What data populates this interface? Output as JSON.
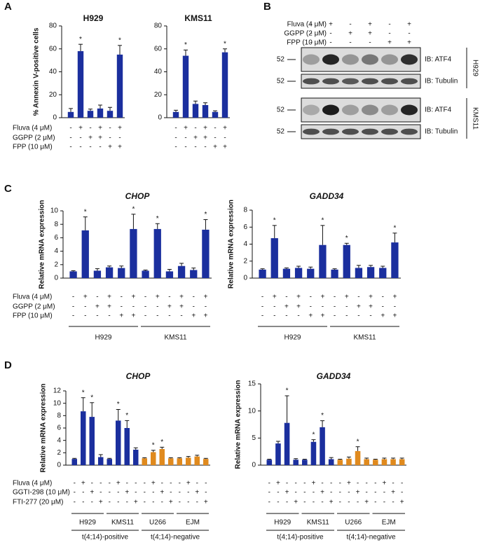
{
  "panel_labels": [
    "A",
    "B",
    "C",
    "D"
  ],
  "blot": {
    "header_rows": [
      {
        "name": "Fluva (4 μM)",
        "signs": [
          "-",
          "+",
          "-",
          "+",
          "-",
          "+"
        ]
      },
      {
        "name": "GGPP (2 μM)",
        "signs": [
          "-",
          "-",
          "+",
          "+",
          "-",
          "-"
        ]
      },
      {
        "name": "FPP (10 μM)",
        "signs": [
          "-",
          "-",
          "-",
          "-",
          "+",
          "+"
        ]
      }
    ],
    "blocks": [
      {
        "cell": "H929",
        "rows": [
          {
            "marker": "52",
            "label": "IB: ATF4"
          },
          {
            "marker": "52",
            "label": "IB: Tubulin"
          }
        ]
      },
      {
        "cell": "KMS11",
        "rows": [
          {
            "marker": "52",
            "label": "IB: ATF4"
          },
          {
            "marker": "52",
            "label": "IB: Tubulin"
          }
        ]
      }
    ]
  },
  "chart_data": [
    {
      "type": "bar",
      "title": "H929",
      "ylabel": "% Annexin V-positive cells",
      "color": "#1b2f9e",
      "values": [
        5,
        58,
        6,
        8,
        6,
        55
      ],
      "errors": [
        3,
        6,
        1.5,
        3,
        3,
        8
      ],
      "significance": [
        null,
        "*",
        null,
        null,
        null,
        "*"
      ],
      "ylim": [
        0,
        80
      ],
      "yticks": [
        0,
        20,
        40,
        60,
        80
      ],
      "treatments": [
        {
          "name": "Fluva (4 μM)",
          "signs": [
            "-",
            "+",
            "-",
            "+",
            "-",
            "+"
          ]
        },
        {
          "name": "GGPP (2 μM)",
          "signs": [
            "-",
            "-",
            "+",
            "+",
            "-",
            "-"
          ]
        },
        {
          "name": "FPP (10 μM)",
          "signs": [
            "-",
            "-",
            "-",
            "-",
            "+",
            "+"
          ]
        }
      ]
    },
    {
      "type": "bar",
      "title": "KMS11",
      "color": "#1b2f9e",
      "values": [
        5,
        54,
        12,
        11,
        5,
        57
      ],
      "errors": [
        1.5,
        5,
        2.5,
        2,
        1,
        3
      ],
      "significance": [
        null,
        "*",
        null,
        null,
        null,
        "*"
      ],
      "ylim": [
        0,
        80
      ],
      "yticks": [
        0,
        20,
        40,
        60,
        80
      ],
      "treatments": [
        {
          "signs": [
            "-",
            "+",
            "-",
            "+",
            "-",
            "+"
          ]
        },
        {
          "signs": [
            "-",
            "-",
            "+",
            "+",
            "-",
            "-"
          ]
        },
        {
          "signs": [
            "-",
            "-",
            "-",
            "-",
            "+",
            "+"
          ]
        }
      ]
    },
    {
      "type": "bar",
      "title": "CHOP",
      "ylabel": "Relative mRNA expression",
      "color": "#1b2f9e",
      "values": [
        1,
        7.1,
        1.1,
        1.6,
        1.5,
        7.3,
        1.1,
        7.3,
        1,
        1.8,
        1.2,
        7.2
      ],
      "errors": [
        0.1,
        2,
        0.3,
        0.2,
        0.3,
        2.2,
        0.1,
        0.8,
        0.3,
        0.4,
        0.3,
        1.5
      ],
      "significance": [
        null,
        "*",
        null,
        null,
        null,
        "*",
        null,
        "*",
        null,
        null,
        null,
        "*"
      ],
      "ylim": [
        0,
        10
      ],
      "yticks": [
        0,
        2,
        4,
        6,
        8,
        10
      ],
      "treatments": [
        {
          "name": "Fluva (4 μM)",
          "signs": [
            "-",
            "+",
            "-",
            "+",
            "-",
            "+",
            "-",
            "+",
            "-",
            "+",
            "-",
            "+"
          ]
        },
        {
          "name": "GGPP (2 μM)",
          "signs": [
            "-",
            "-",
            "+",
            "+",
            "-",
            "-",
            "-",
            "-",
            "+",
            "+",
            "-",
            "-"
          ]
        },
        {
          "name": "FPP (10 μM)",
          "signs": [
            "-",
            "-",
            "-",
            "-",
            "+",
            "+",
            "-",
            "-",
            "-",
            "-",
            "+",
            "+"
          ]
        }
      ],
      "groups": [
        "H929",
        "KMS11"
      ]
    },
    {
      "type": "bar",
      "title": "GADD34",
      "ylabel": "Relative mRNA expression",
      "color": "#1b2f9e",
      "values": [
        1,
        4.7,
        1.1,
        1.2,
        1.1,
        3.9,
        1,
        3.9,
        1.2,
        1.3,
        1.2,
        4.2
      ],
      "errors": [
        0.1,
        1.5,
        0.1,
        0.2,
        0.2,
        2.3,
        0.1,
        0.2,
        0.3,
        0.2,
        0.2,
        1.1
      ],
      "significance": [
        null,
        "*",
        null,
        null,
        null,
        "*",
        null,
        "*",
        null,
        null,
        null,
        "*"
      ],
      "ylim": [
        0,
        8
      ],
      "yticks": [
        0,
        2,
        4,
        6,
        8
      ],
      "treatments": [
        {
          "signs": [
            "-",
            "+",
            "-",
            "+",
            "-",
            "+",
            "-",
            "+",
            "-",
            "+",
            "-",
            "+"
          ]
        },
        {
          "signs": [
            "-",
            "-",
            "+",
            "+",
            "-",
            "-",
            "-",
            "-",
            "+",
            "+",
            "-",
            "-"
          ]
        },
        {
          "signs": [
            "-",
            "-",
            "-",
            "-",
            "+",
            "+",
            "-",
            "-",
            "-",
            "-",
            "+",
            "+"
          ]
        }
      ],
      "groups": [
        "H929",
        "KMS11"
      ]
    },
    {
      "type": "bar",
      "title": "CHOP",
      "ylabel": "Relative mRNA expression",
      "colors": [
        "#1b2f9e",
        "#1b2f9e",
        "#1b2f9e",
        "#1b2f9e",
        "#1b2f9e",
        "#1b2f9e",
        "#1b2f9e",
        "#1b2f9e",
        "#e08a1e",
        "#e08a1e",
        "#e08a1e",
        "#e08a1e",
        "#e08a1e",
        "#e08a1e",
        "#e08a1e",
        "#e08a1e"
      ],
      "values": [
        1,
        8.7,
        7.8,
        1.3,
        1,
        7.2,
        6,
        2.5,
        1.1,
        2.1,
        2.6,
        1.1,
        1.1,
        1.2,
        1.4,
        1
      ],
      "errors": [
        0.1,
        2.2,
        2.3,
        0.4,
        0.1,
        1.8,
        1.2,
        0.3,
        0.1,
        0.3,
        0.3,
        0.1,
        0.1,
        0.2,
        0.2,
        0.1
      ],
      "significance": [
        null,
        "*",
        "*",
        null,
        null,
        "*",
        "*",
        null,
        null,
        "*",
        "*",
        null,
        null,
        null,
        null,
        null
      ],
      "ylim": [
        0,
        12
      ],
      "yticks": [
        0,
        2,
        4,
        6,
        8,
        10,
        12
      ],
      "treatments": [
        {
          "name": "Fluva (4 μM)",
          "signs": [
            "-",
            "+",
            "-",
            "-",
            "-",
            "+",
            "-",
            "-",
            "-",
            "+",
            "-",
            "-",
            "-",
            "+",
            "-",
            "-"
          ]
        },
        {
          "name": "GGTI-298 (10 μM)",
          "signs": [
            "-",
            "-",
            "+",
            "-",
            "-",
            "-",
            "+",
            "-",
            "-",
            "-",
            "+",
            "-",
            "-",
            "-",
            "+",
            "-"
          ]
        },
        {
          "name": "FTI-277 (20 μM)",
          "signs": [
            "-",
            "-",
            "-",
            "+",
            "-",
            "-",
            "-",
            "+",
            "-",
            "-",
            "-",
            "+",
            "-",
            "-",
            "-",
            "+"
          ]
        }
      ],
      "groups": [
        "H929",
        "KMS11",
        "U266",
        "EJM"
      ],
      "supergroups": [
        "t(4;14)-positive",
        "t(4;14)-negative"
      ]
    },
    {
      "type": "bar",
      "title": "GADD34",
      "ylabel": "Relative mRNA expression",
      "colors": [
        "#1b2f9e",
        "#1b2f9e",
        "#1b2f9e",
        "#1b2f9e",
        "#1b2f9e",
        "#1b2f9e",
        "#1b2f9e",
        "#1b2f9e",
        "#e08a1e",
        "#e08a1e",
        "#e08a1e",
        "#e08a1e",
        "#e08a1e",
        "#e08a1e",
        "#e08a1e",
        "#e08a1e"
      ],
      "values": [
        1,
        4,
        7.8,
        1,
        1,
        4.3,
        7,
        1.1,
        1,
        1.2,
        2.6,
        1.1,
        1,
        1.1,
        1.1,
        1.1
      ],
      "errors": [
        0.1,
        0.4,
        5,
        0.2,
        0.1,
        0.4,
        1.2,
        0.3,
        0.1,
        0.3,
        0.8,
        0.2,
        0.1,
        0.2,
        0.2,
        0.2
      ],
      "significance": [
        null,
        null,
        "*",
        null,
        null,
        "*",
        "*",
        null,
        null,
        null,
        "*",
        null,
        null,
        null,
        null,
        null
      ],
      "ylim": [
        0,
        15
      ],
      "yticks": [
        0,
        5,
        10,
        15
      ],
      "treatments": [
        {
          "signs": [
            "-",
            "+",
            "-",
            "-",
            "-",
            "+",
            "-",
            "-",
            "-",
            "+",
            "-",
            "-",
            "-",
            "+",
            "-",
            "-"
          ]
        },
        {
          "signs": [
            "-",
            "-",
            "+",
            "-",
            "-",
            "-",
            "+",
            "-",
            "-",
            "-",
            "+",
            "-",
            "-",
            "-",
            "+",
            "-"
          ]
        },
        {
          "signs": [
            "-",
            "-",
            "-",
            "+",
            "-",
            "-",
            "-",
            "+",
            "-",
            "-",
            "-",
            "+",
            "-",
            "-",
            "-",
            "+"
          ]
        }
      ],
      "groups": [
        "H929",
        "KMS11",
        "U266",
        "EJM"
      ],
      "supergroups": [
        "t(4;14)-positive",
        "t(4;14)-negative"
      ]
    }
  ]
}
